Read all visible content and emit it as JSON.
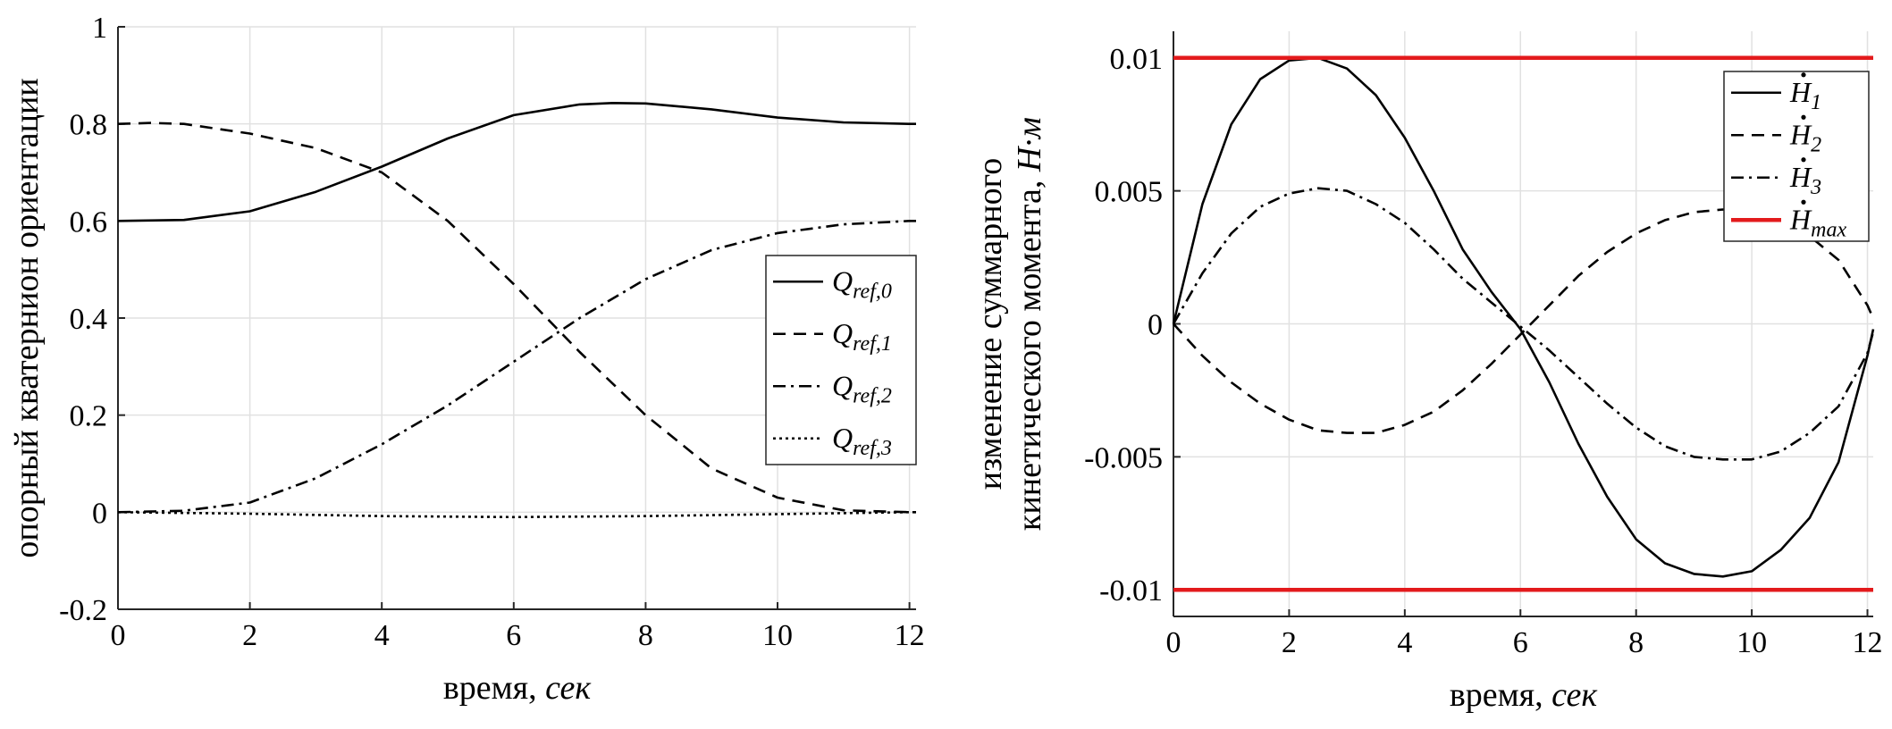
{
  "chart_data": [
    {
      "type": "line",
      "xlabel_text": "время, ",
      "xlabel_unit": "сек",
      "ylabel": "опорный кватернион ориентации",
      "xlim": [
        0,
        12.1
      ],
      "ylim": [
        -0.2,
        1.0
      ],
      "xticks": [
        "0",
        "2",
        "4",
        "6",
        "8",
        "10",
        "12"
      ],
      "yticks": [
        "-0.2",
        "0",
        "0.2",
        "0.4",
        "0.6",
        "0.8",
        "1"
      ],
      "grid": true,
      "legend_position": "right",
      "series": [
        {
          "name": "Q_ref,0",
          "label_main": "Q",
          "label_sub": "ref,0",
          "dash": "solid",
          "x": [
            0,
            1,
            2,
            3,
            4,
            5,
            6,
            7,
            7.5,
            8,
            9,
            10,
            11,
            12,
            12.1
          ],
          "y": [
            0.6,
            0.602,
            0.62,
            0.66,
            0.712,
            0.77,
            0.818,
            0.84,
            0.843,
            0.842,
            0.83,
            0.813,
            0.803,
            0.8,
            0.8
          ]
        },
        {
          "name": "Q_ref,1",
          "label_main": "Q",
          "label_sub": "ref,1",
          "dash": "dashed",
          "x": [
            0,
            0.5,
            1,
            2,
            3,
            4,
            5,
            6,
            7,
            8,
            9,
            10,
            11,
            12,
            12.1
          ],
          "y": [
            0.8,
            0.802,
            0.8,
            0.78,
            0.75,
            0.7,
            0.6,
            0.47,
            0.33,
            0.2,
            0.09,
            0.03,
            0.004,
            0.0,
            0.0
          ]
        },
        {
          "name": "Q_ref,2",
          "label_main": "Q",
          "label_sub": "ref,2",
          "dash": "dashdot",
          "x": [
            0,
            1,
            2,
            3,
            4,
            5,
            6,
            7,
            8,
            9,
            10,
            11,
            12,
            12.1
          ],
          "y": [
            0.0,
            0.003,
            0.02,
            0.07,
            0.14,
            0.22,
            0.31,
            0.4,
            0.48,
            0.54,
            0.575,
            0.593,
            0.6,
            0.6
          ]
        },
        {
          "name": "Q_ref,3",
          "label_main": "Q",
          "label_sub": "ref,3",
          "dash": "dotted",
          "x": [
            0,
            2,
            4,
            6,
            8,
            10,
            12,
            12.1
          ],
          "y": [
            0.0,
            -0.003,
            -0.008,
            -0.01,
            -0.008,
            -0.004,
            0.0,
            0.0
          ]
        }
      ]
    },
    {
      "type": "line",
      "xlabel_text": "время, ",
      "xlabel_unit": "сек",
      "ylabel_line1": "изменение суммарного",
      "ylabel_line2": "кинетического момента, ",
      "ylabel_unit": "Н·м",
      "xlim": [
        0,
        12.1
      ],
      "ylim": [
        -0.011,
        0.011
      ],
      "xticks": [
        "0",
        "2",
        "4",
        "6",
        "8",
        "10",
        "12"
      ],
      "yticks": [
        "-0.01",
        "-0.005",
        "0",
        "0.005",
        "0.01"
      ],
      "grid": true,
      "legend_position": "top-right",
      "series": [
        {
          "name": "H_1",
          "label_main": "H",
          "label_sub": "1",
          "dash": "solid",
          "color": "#000000",
          "x": [
            0,
            0.5,
            1,
            1.5,
            2,
            2.5,
            3,
            3.5,
            4,
            4.5,
            5,
            5.5,
            6,
            6.5,
            7,
            7.5,
            8,
            8.5,
            9,
            9.5,
            10,
            10.5,
            11,
            11.5,
            12,
            12.1
          ],
          "y": [
            0,
            0.0045,
            0.0075,
            0.0092,
            0.0099,
            0.01,
            0.0096,
            0.0086,
            0.007,
            0.005,
            0.0028,
            0.0012,
            -0.0002,
            -0.0022,
            -0.0045,
            -0.0065,
            -0.0081,
            -0.009,
            -0.0094,
            -0.0095,
            -0.0093,
            -0.0085,
            -0.0073,
            -0.0052,
            -0.0012,
            -0.0002
          ]
        },
        {
          "name": "H_2",
          "label_main": "H",
          "label_sub": "2",
          "dash": "dashed",
          "color": "#000000",
          "x": [
            0,
            0.5,
            1,
            1.5,
            2,
            2.5,
            3,
            3.5,
            4,
            4.5,
            5,
            5.5,
            6,
            6.5,
            7,
            7.5,
            8,
            8.5,
            9,
            9.5,
            10,
            10.5,
            11,
            11.5,
            12,
            12.1
          ],
          "y": [
            0,
            -0.0012,
            -0.0022,
            -0.003,
            -0.0036,
            -0.004,
            -0.0041,
            -0.0041,
            -0.0038,
            -0.0033,
            -0.0025,
            -0.0015,
            -0.0004,
            0.0007,
            0.0018,
            0.0027,
            0.0034,
            0.0039,
            0.0042,
            0.0043,
            0.0042,
            0.0039,
            0.0033,
            0.0024,
            0.0007,
            0.0002
          ]
        },
        {
          "name": "H_3",
          "label_main": "H",
          "label_sub": "3",
          "dash": "dashdot",
          "color": "#000000",
          "x": [
            0,
            0.5,
            1,
            1.5,
            2,
            2.5,
            3,
            3.5,
            4,
            4.5,
            5,
            5.5,
            6,
            6.5,
            7,
            7.5,
            8,
            8.5,
            9,
            9.5,
            10,
            10.5,
            11,
            11.5,
            12,
            12.1
          ],
          "y": [
            0,
            0.0019,
            0.0034,
            0.0044,
            0.0049,
            0.0051,
            0.005,
            0.0045,
            0.0038,
            0.0028,
            0.0017,
            0.0008,
            -0.0001,
            -0.001,
            -0.002,
            -0.003,
            -0.0039,
            -0.0046,
            -0.005,
            -0.0051,
            -0.0051,
            -0.0048,
            -0.0041,
            -0.0031,
            -0.0011,
            -0.0003
          ]
        },
        {
          "name": "H_max",
          "label_main": "H",
          "label_sub": "max",
          "dash": "solid",
          "color": "#e31a1c",
          "width": 4.5,
          "x": [
            0,
            12.1
          ],
          "y": [
            0.01,
            0.01
          ]
        },
        {
          "name": "",
          "dash": "solid",
          "color": "#e31a1c",
          "width": 4.5,
          "legend": false,
          "x": [
            0,
            12.1
          ],
          "y": [
            -0.01,
            -0.01
          ]
        }
      ]
    }
  ]
}
